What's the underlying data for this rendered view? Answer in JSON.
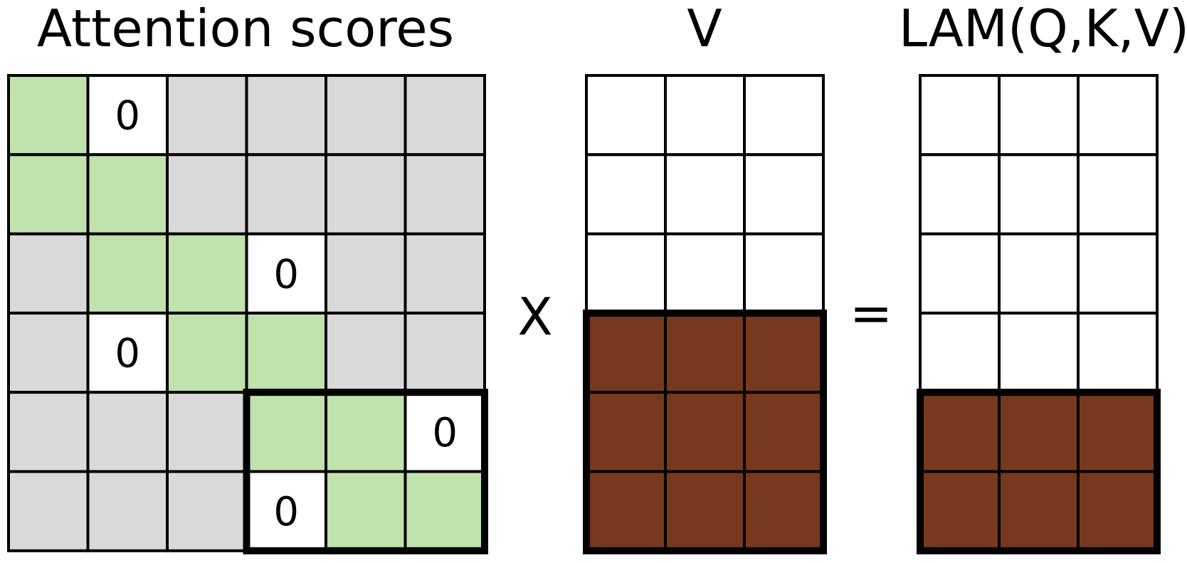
{
  "titles": {
    "attention": "Attention scores",
    "v": "V",
    "output": "LAM(Q,K,V)"
  },
  "operators": {
    "multiply": "X",
    "equals": "="
  },
  "colors": {
    "gray": "#d9d9d9",
    "green": "#c0e2ac",
    "white": "#ffffff",
    "brown": "#77391d",
    "line": "#000000"
  },
  "attention_matrix": {
    "rows": [
      [
        "green",
        "zero",
        "gray",
        "gray",
        "gray",
        "gray"
      ],
      [
        "green",
        "green",
        "gray",
        "gray",
        "gray",
        "gray"
      ],
      [
        "gray",
        "green",
        "green",
        "zero",
        "gray",
        "gray"
      ],
      [
        "gray",
        "zero",
        "green",
        "green",
        "gray",
        "gray"
      ],
      [
        "gray",
        "gray",
        "gray",
        "green",
        "green",
        "zero"
      ],
      [
        "gray",
        "gray",
        "gray",
        "zero",
        "green",
        "green"
      ]
    ],
    "zero_label": "0",
    "highlight_block": "rows 5-6, columns 4-6"
  },
  "v_matrix": {
    "rows": [
      [
        "white",
        "white",
        "white"
      ],
      [
        "white",
        "white",
        "white"
      ],
      [
        "white",
        "white",
        "white"
      ],
      [
        "brown",
        "brown",
        "brown"
      ],
      [
        "brown",
        "brown",
        "brown"
      ],
      [
        "brown",
        "brown",
        "brown"
      ]
    ],
    "highlight_block": "rows 4-6"
  },
  "output_matrix": {
    "rows": [
      [
        "white",
        "white",
        "white"
      ],
      [
        "white",
        "white",
        "white"
      ],
      [
        "white",
        "white",
        "white"
      ],
      [
        "white",
        "white",
        "white"
      ],
      [
        "brown",
        "brown",
        "brown"
      ],
      [
        "brown",
        "brown",
        "brown"
      ]
    ],
    "highlight_block": "rows 5-6"
  }
}
